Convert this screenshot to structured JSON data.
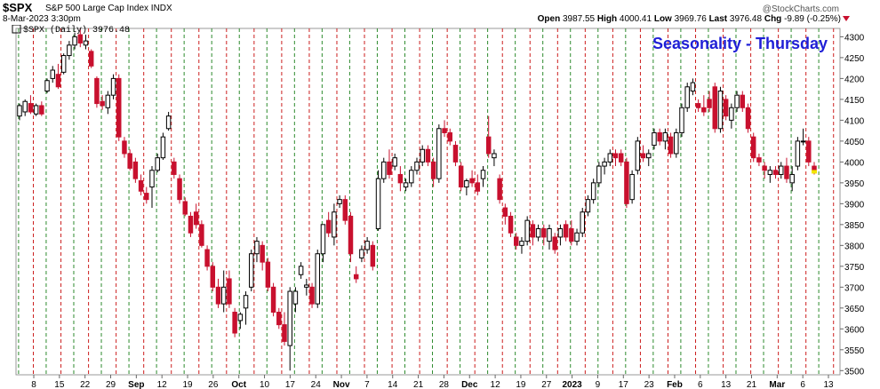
{
  "header": {
    "symbol": "$SPX",
    "name": "S&P 500 Large Cap Index INDX",
    "date": "8-Mar-2023 3:30pm",
    "credit": "@StockCharts.com",
    "open_label": "Open",
    "open": "3987.55",
    "high_label": "High",
    "high": "4000.41",
    "low_label": "Low",
    "low": "3969.76",
    "last_label": "Last",
    "last": "3976.48",
    "chg_label": "Chg",
    "chg": "-9.89 (-0.25%)"
  },
  "colors": {
    "up_candle": "#ffffff",
    "down_candle": "#c8102e",
    "doji_candle": "#000000",
    "green_line": "#2e8b2e",
    "red_line": "#cc1f1f",
    "title": "#1f1fd6",
    "highlight": "#f2e600"
  },
  "chart_data": {
    "type": "candlestick",
    "series_label": "$SPX (Daily) 3976.48",
    "title": "Seasonality - Thursday",
    "ylim": [
      3490,
      4320
    ],
    "yticks": [
      3500,
      3550,
      3600,
      3650,
      3700,
      3750,
      3800,
      3850,
      3900,
      3950,
      4000,
      4050,
      4100,
      4150,
      4200,
      4250,
      4300
    ],
    "x_tick_labels": [
      {
        "label": "8",
        "bold": false
      },
      {
        "label": "15",
        "bold": false
      },
      {
        "label": "22",
        "bold": false
      },
      {
        "label": "29",
        "bold": false
      },
      {
        "label": "Sep",
        "bold": true
      },
      {
        "label": "12",
        "bold": false
      },
      {
        "label": "19",
        "bold": false
      },
      {
        "label": "26",
        "bold": false
      },
      {
        "label": "Oct",
        "bold": true
      },
      {
        "label": "10",
        "bold": false
      },
      {
        "label": "17",
        "bold": false
      },
      {
        "label": "24",
        "bold": false
      },
      {
        "label": "Nov",
        "bold": true
      },
      {
        "label": "7",
        "bold": false
      },
      {
        "label": "14",
        "bold": false
      },
      {
        "label": "21",
        "bold": false
      },
      {
        "label": "28",
        "bold": false
      },
      {
        "label": "Dec",
        "bold": true
      },
      {
        "label": "12",
        "bold": false
      },
      {
        "label": "19",
        "bold": false
      },
      {
        "label": "27",
        "bold": false
      },
      {
        "label": "2023",
        "bold": true
      },
      {
        "label": "9",
        "bold": false
      },
      {
        "label": "17",
        "bold": false
      },
      {
        "label": "23",
        "bold": false
      },
      {
        "label": "Feb",
        "bold": true
      },
      {
        "label": "6",
        "bold": false
      },
      {
        "label": "13",
        "bold": false
      },
      {
        "label": "21",
        "bold": false
      },
      {
        "label": "Mar",
        "bold": true
      },
      {
        "label": "6",
        "bold": false
      },
      {
        "label": "13",
        "bold": false
      }
    ],
    "weekday_lines": "green dashed = Monday, red dashed = Thursday (one pair per week)",
    "candles": [
      {
        "o": 4110,
        "h": 4140,
        "l": 4100,
        "c": 4135
      },
      {
        "o": 4120,
        "h": 4150,
        "l": 4110,
        "c": 4145
      },
      {
        "o": 4140,
        "h": 4160,
        "l": 4115,
        "c": 4120
      },
      {
        "o": 4115,
        "h": 4140,
        "l": 4110,
        "c": 4135
      },
      {
        "o": 4135,
        "h": 4145,
        "l": 4110,
        "c": 4115
      },
      {
        "o": 4170,
        "h": 4200,
        "l": 4165,
        "c": 4195
      },
      {
        "o": 4200,
        "h": 4230,
        "l": 4190,
        "c": 4220
      },
      {
        "o": 4210,
        "h": 4235,
        "l": 4175,
        "c": 4180
      },
      {
        "o": 4215,
        "h": 4260,
        "l": 4210,
        "c": 4255
      },
      {
        "o": 4255,
        "h": 4290,
        "l": 4245,
        "c": 4280
      },
      {
        "o": 4280,
        "h": 4310,
        "l": 4270,
        "c": 4300
      },
      {
        "o": 4305,
        "h": 4320,
        "l": 4275,
        "c": 4285
      },
      {
        "o": 4280,
        "h": 4305,
        "l": 4270,
        "c": 4290
      },
      {
        "o": 4265,
        "h": 4270,
        "l": 4225,
        "c": 4230
      },
      {
        "o": 4200,
        "h": 4205,
        "l": 4130,
        "c": 4140
      },
      {
        "o": 4145,
        "h": 4160,
        "l": 4125,
        "c": 4135
      },
      {
        "o": 4130,
        "h": 4170,
        "l": 4115,
        "c": 4160
      },
      {
        "o": 4160,
        "h": 4210,
        "l": 4150,
        "c": 4200
      },
      {
        "o": 4200,
        "h": 4210,
        "l": 4050,
        "c": 4060
      },
      {
        "o": 4050,
        "h": 4060,
        "l": 4010,
        "c": 4020
      },
      {
        "o": 4020,
        "h": 4030,
        "l": 3980,
        "c": 3985
      },
      {
        "o": 4000,
        "h": 4010,
        "l": 3950,
        "c": 3960
      },
      {
        "o": 3955,
        "h": 3970,
        "l": 3920,
        "c": 3930
      },
      {
        "o": 3925,
        "h": 3940,
        "l": 3900,
        "c": 3910
      },
      {
        "o": 3940,
        "h": 3990,
        "l": 3890,
        "c": 3980
      },
      {
        "o": 3980,
        "h": 4020,
        "l": 3975,
        "c": 4010
      },
      {
        "o": 4010,
        "h": 4070,
        "l": 4005,
        "c": 4060
      },
      {
        "o": 4080,
        "h": 4120,
        "l": 4075,
        "c": 4110
      },
      {
        "o": 4000,
        "h": 4010,
        "l": 3960,
        "c": 3970
      },
      {
        "o": 3960,
        "h": 3970,
        "l": 3900,
        "c": 3910
      },
      {
        "o": 3905,
        "h": 3915,
        "l": 3870,
        "c": 3875
      },
      {
        "o": 3870,
        "h": 3880,
        "l": 3820,
        "c": 3830
      },
      {
        "o": 3880,
        "h": 3900,
        "l": 3840,
        "c": 3850
      },
      {
        "o": 3850,
        "h": 3860,
        "l": 3795,
        "c": 3800
      },
      {
        "o": 3790,
        "h": 3800,
        "l": 3740,
        "c": 3750
      },
      {
        "o": 3750,
        "h": 3760,
        "l": 3690,
        "c": 3700
      },
      {
        "o": 3700,
        "h": 3720,
        "l": 3650,
        "c": 3660
      },
      {
        "o": 3660,
        "h": 3740,
        "l": 3640,
        "c": 3700
      },
      {
        "o": 3720,
        "h": 3740,
        "l": 3650,
        "c": 3660
      },
      {
        "o": 3640,
        "h": 3650,
        "l": 3580,
        "c": 3590
      },
      {
        "o": 3620,
        "h": 3640,
        "l": 3600,
        "c": 3635
      },
      {
        "o": 3650,
        "h": 3690,
        "l": 3610,
        "c": 3680
      },
      {
        "o": 3700,
        "h": 3790,
        "l": 3690,
        "c": 3780
      },
      {
        "o": 3780,
        "h": 3820,
        "l": 3760,
        "c": 3810
      },
      {
        "o": 3800,
        "h": 3810,
        "l": 3740,
        "c": 3760
      },
      {
        "o": 3760,
        "h": 3770,
        "l": 3690,
        "c": 3700
      },
      {
        "o": 3700,
        "h": 3710,
        "l": 3630,
        "c": 3640
      },
      {
        "o": 3640,
        "h": 3650,
        "l": 3600,
        "c": 3610
      },
      {
        "o": 3610,
        "h": 3640,
        "l": 3560,
        "c": 3570
      },
      {
        "o": 3560,
        "h": 3700,
        "l": 3500,
        "c": 3690
      },
      {
        "o": 3660,
        "h": 3700,
        "l": 3640,
        "c": 3690
      },
      {
        "o": 3730,
        "h": 3760,
        "l": 3720,
        "c": 3750
      },
      {
        "o": 3700,
        "h": 3720,
        "l": 3680,
        "c": 3705
      },
      {
        "o": 3700,
        "h": 3710,
        "l": 3650,
        "c": 3660
      },
      {
        "o": 3660,
        "h": 3790,
        "l": 3650,
        "c": 3780
      },
      {
        "o": 3780,
        "h": 3850,
        "l": 3760,
        "c": 3850
      },
      {
        "o": 3860,
        "h": 3880,
        "l": 3820,
        "c": 3830
      },
      {
        "o": 3820,
        "h": 3900,
        "l": 3800,
        "c": 3880
      },
      {
        "o": 3900,
        "h": 3920,
        "l": 3890,
        "c": 3910
      },
      {
        "o": 3910,
        "h": 3920,
        "l": 3850,
        "c": 3860
      },
      {
        "o": 3870,
        "h": 3880,
        "l": 3760,
        "c": 3780
      },
      {
        "o": 3730,
        "h": 3750,
        "l": 3710,
        "c": 3720
      },
      {
        "o": 3770,
        "h": 3800,
        "l": 3760,
        "c": 3790
      },
      {
        "o": 3790,
        "h": 3820,
        "l": 3780,
        "c": 3810
      },
      {
        "o": 3800,
        "h": 3810,
        "l": 3740,
        "c": 3750
      },
      {
        "o": 3840,
        "h": 3980,
        "l": 3835,
        "c": 3960
      },
      {
        "o": 3960,
        "h": 4010,
        "l": 3950,
        "c": 4000
      },
      {
        "o": 4000,
        "h": 4030,
        "l": 3960,
        "c": 3970
      },
      {
        "o": 3990,
        "h": 4020,
        "l": 3980,
        "c": 4010
      },
      {
        "o": 3970,
        "h": 3990,
        "l": 3930,
        "c": 3950
      },
      {
        "o": 3940,
        "h": 3960,
        "l": 3930,
        "c": 3950
      },
      {
        "o": 3950,
        "h": 3990,
        "l": 3940,
        "c": 3980
      },
      {
        "o": 3980,
        "h": 4010,
        "l": 3970,
        "c": 4000
      },
      {
        "o": 4000,
        "h": 4040,
        "l": 3990,
        "c": 4030
      },
      {
        "o": 4030,
        "h": 4040,
        "l": 3990,
        "c": 4000
      },
      {
        "o": 4000,
        "h": 4010,
        "l": 3940,
        "c": 3960
      },
      {
        "o": 3960,
        "h": 4090,
        "l": 3950,
        "c": 4080
      },
      {
        "o": 4080,
        "h": 4100,
        "l": 4060,
        "c": 4070
      },
      {
        "o": 4070,
        "h": 4080,
        "l": 4040,
        "c": 4050
      },
      {
        "o": 4040,
        "h": 4050,
        "l": 3990,
        "c": 4000
      },
      {
        "o": 3990,
        "h": 4000,
        "l": 3930,
        "c": 3940
      },
      {
        "o": 3940,
        "h": 3960,
        "l": 3920,
        "c": 3955
      },
      {
        "o": 3960,
        "h": 3980,
        "l": 3940,
        "c": 3950
      },
      {
        "o": 3950,
        "h": 3970,
        "l": 3920,
        "c": 3930
      },
      {
        "o": 3960,
        "h": 3990,
        "l": 3940,
        "c": 3980
      },
      {
        "o": 4060,
        "h": 4110,
        "l": 4010,
        "c": 4020
      },
      {
        "o": 4010,
        "h": 4030,
        "l": 3990,
        "c": 4020
      },
      {
        "o": 3960,
        "h": 3970,
        "l": 3900,
        "c": 3910
      },
      {
        "o": 3890,
        "h": 3900,
        "l": 3850,
        "c": 3870
      },
      {
        "o": 3870,
        "h": 3880,
        "l": 3820,
        "c": 3830
      },
      {
        "o": 3820,
        "h": 3830,
        "l": 3790,
        "c": 3800
      },
      {
        "o": 3800,
        "h": 3820,
        "l": 3780,
        "c": 3810
      },
      {
        "o": 3810,
        "h": 3870,
        "l": 3800,
        "c": 3860
      },
      {
        "o": 3850,
        "h": 3860,
        "l": 3800,
        "c": 3820
      },
      {
        "o": 3820,
        "h": 3850,
        "l": 3810,
        "c": 3840
      },
      {
        "o": 3840,
        "h": 3850,
        "l": 3800,
        "c": 3820
      },
      {
        "o": 3810,
        "h": 3850,
        "l": 3790,
        "c": 3840
      },
      {
        "o": 3820,
        "h": 3830,
        "l": 3780,
        "c": 3790
      },
      {
        "o": 3820,
        "h": 3850,
        "l": 3800,
        "c": 3840
      },
      {
        "o": 3850,
        "h": 3860,
        "l": 3810,
        "c": 3820
      },
      {
        "o": 3840,
        "h": 3860,
        "l": 3800,
        "c": 3810
      },
      {
        "o": 3810,
        "h": 3840,
        "l": 3800,
        "c": 3830
      },
      {
        "o": 3830,
        "h": 3890,
        "l": 3820,
        "c": 3880
      },
      {
        "o": 3880,
        "h": 3920,
        "l": 3870,
        "c": 3910
      },
      {
        "o": 3910,
        "h": 3960,
        "l": 3900,
        "c": 3950
      },
      {
        "o": 3950,
        "h": 4000,
        "l": 3940,
        "c": 3990
      },
      {
        "o": 3990,
        "h": 4010,
        "l": 3970,
        "c": 4000
      },
      {
        "o": 4000,
        "h": 4030,
        "l": 3990,
        "c": 4020
      },
      {
        "o": 4020,
        "h": 4030,
        "l": 3990,
        "c": 4010
      },
      {
        "o": 4020,
        "h": 4030,
        "l": 3990,
        "c": 4000
      },
      {
        "o": 4000,
        "h": 4010,
        "l": 3890,
        "c": 3900
      },
      {
        "o": 3910,
        "h": 3980,
        "l": 3900,
        "c": 3970
      },
      {
        "o": 3980,
        "h": 4060,
        "l": 3970,
        "c": 4050
      },
      {
        "o": 4020,
        "h": 4040,
        "l": 4000,
        "c": 4010
      },
      {
        "o": 4010,
        "h": 4030,
        "l": 3990,
        "c": 4020
      },
      {
        "o": 4040,
        "h": 4080,
        "l": 4030,
        "c": 4070
      },
      {
        "o": 4070,
        "h": 4080,
        "l": 4040,
        "c": 4050
      },
      {
        "o": 4050,
        "h": 4080,
        "l": 4030,
        "c": 4070
      },
      {
        "o": 4060,
        "h": 4070,
        "l": 4010,
        "c": 4020
      },
      {
        "o": 4020,
        "h": 4080,
        "l": 4010,
        "c": 4070
      },
      {
        "o": 4070,
        "h": 4140,
        "l": 4060,
        "c": 4130
      },
      {
        "o": 4130,
        "h": 4190,
        "l": 4120,
        "c": 4180
      },
      {
        "o": 4170,
        "h": 4200,
        "l": 4160,
        "c": 4190
      },
      {
        "o": 4140,
        "h": 4150,
        "l": 4120,
        "c": 4130
      },
      {
        "o": 4130,
        "h": 4160,
        "l": 4110,
        "c": 4120
      },
      {
        "o": 4150,
        "h": 4170,
        "l": 4120,
        "c": 4130
      },
      {
        "o": 4180,
        "h": 4190,
        "l": 4070,
        "c": 4080
      },
      {
        "o": 4080,
        "h": 4180,
        "l": 4070,
        "c": 4170
      },
      {
        "o": 4150,
        "h": 4160,
        "l": 4100,
        "c": 4110
      },
      {
        "o": 4100,
        "h": 4140,
        "l": 4080,
        "c": 4130
      },
      {
        "o": 4130,
        "h": 4170,
        "l": 4120,
        "c": 4160
      },
      {
        "o": 4160,
        "h": 4170,
        "l": 4120,
        "c": 4130
      },
      {
        "o": 4130,
        "h": 4140,
        "l": 4070,
        "c": 4080
      },
      {
        "o": 4060,
        "h": 4070,
        "l": 4000,
        "c": 4010
      },
      {
        "o": 4010,
        "h": 4020,
        "l": 3990,
        "c": 4000
      },
      {
        "o": 3990,
        "h": 4000,
        "l": 3960,
        "c": 3980
      },
      {
        "o": 3970,
        "h": 3990,
        "l": 3950,
        "c": 3980
      },
      {
        "o": 3980,
        "h": 3990,
        "l": 3960,
        "c": 3970
      },
      {
        "o": 3970,
        "h": 4000,
        "l": 3960,
        "c": 3990
      },
      {
        "o": 3990,
        "h": 4010,
        "l": 3950,
        "c": 3960
      },
      {
        "o": 3950,
        "h": 3990,
        "l": 3930,
        "c": 3970
      },
      {
        "o": 3990,
        "h": 4060,
        "l": 3980,
        "c": 4050
      },
      {
        "o": 4050,
        "h": 4080,
        "l": 4040,
        "c": 4050
      },
      {
        "o": 4050,
        "h": 4060,
        "l": 3990,
        "c": 4000
      },
      {
        "o": 3990,
        "h": 4000,
        "l": 3970,
        "c": 3976.48
      }
    ]
  }
}
